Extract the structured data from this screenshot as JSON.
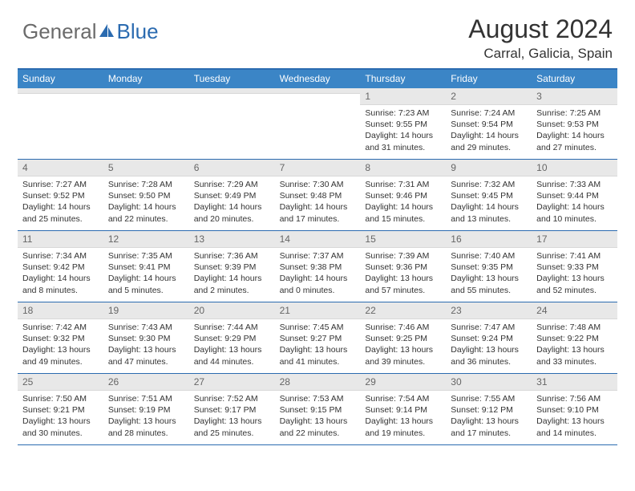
{
  "logo": {
    "text1": "General",
    "text2": "Blue"
  },
  "title": "August 2024",
  "location": "Carral, Galicia, Spain",
  "colors": {
    "header_bar": "#3b85c6",
    "accent_line": "#2b6bb0",
    "daynum_bg": "#e8e8e8",
    "logo_gray": "#6b6b6b",
    "logo_blue": "#2b6bb0"
  },
  "dow": [
    "Sunday",
    "Monday",
    "Tuesday",
    "Wednesday",
    "Thursday",
    "Friday",
    "Saturday"
  ],
  "weeks": [
    [
      {
        "n": "",
        "sr": "",
        "ss": "",
        "dl": ""
      },
      {
        "n": "",
        "sr": "",
        "ss": "",
        "dl": ""
      },
      {
        "n": "",
        "sr": "",
        "ss": "",
        "dl": ""
      },
      {
        "n": "",
        "sr": "",
        "ss": "",
        "dl": ""
      },
      {
        "n": "1",
        "sr": "Sunrise: 7:23 AM",
        "ss": "Sunset: 9:55 PM",
        "dl": "Daylight: 14 hours and 31 minutes."
      },
      {
        "n": "2",
        "sr": "Sunrise: 7:24 AM",
        "ss": "Sunset: 9:54 PM",
        "dl": "Daylight: 14 hours and 29 minutes."
      },
      {
        "n": "3",
        "sr": "Sunrise: 7:25 AM",
        "ss": "Sunset: 9:53 PM",
        "dl": "Daylight: 14 hours and 27 minutes."
      }
    ],
    [
      {
        "n": "4",
        "sr": "Sunrise: 7:27 AM",
        "ss": "Sunset: 9:52 PM",
        "dl": "Daylight: 14 hours and 25 minutes."
      },
      {
        "n": "5",
        "sr": "Sunrise: 7:28 AM",
        "ss": "Sunset: 9:50 PM",
        "dl": "Daylight: 14 hours and 22 minutes."
      },
      {
        "n": "6",
        "sr": "Sunrise: 7:29 AM",
        "ss": "Sunset: 9:49 PM",
        "dl": "Daylight: 14 hours and 20 minutes."
      },
      {
        "n": "7",
        "sr": "Sunrise: 7:30 AM",
        "ss": "Sunset: 9:48 PM",
        "dl": "Daylight: 14 hours and 17 minutes."
      },
      {
        "n": "8",
        "sr": "Sunrise: 7:31 AM",
        "ss": "Sunset: 9:46 PM",
        "dl": "Daylight: 14 hours and 15 minutes."
      },
      {
        "n": "9",
        "sr": "Sunrise: 7:32 AM",
        "ss": "Sunset: 9:45 PM",
        "dl": "Daylight: 14 hours and 13 minutes."
      },
      {
        "n": "10",
        "sr": "Sunrise: 7:33 AM",
        "ss": "Sunset: 9:44 PM",
        "dl": "Daylight: 14 hours and 10 minutes."
      }
    ],
    [
      {
        "n": "11",
        "sr": "Sunrise: 7:34 AM",
        "ss": "Sunset: 9:42 PM",
        "dl": "Daylight: 14 hours and 8 minutes."
      },
      {
        "n": "12",
        "sr": "Sunrise: 7:35 AM",
        "ss": "Sunset: 9:41 PM",
        "dl": "Daylight: 14 hours and 5 minutes."
      },
      {
        "n": "13",
        "sr": "Sunrise: 7:36 AM",
        "ss": "Sunset: 9:39 PM",
        "dl": "Daylight: 14 hours and 2 minutes."
      },
      {
        "n": "14",
        "sr": "Sunrise: 7:37 AM",
        "ss": "Sunset: 9:38 PM",
        "dl": "Daylight: 14 hours and 0 minutes."
      },
      {
        "n": "15",
        "sr": "Sunrise: 7:39 AM",
        "ss": "Sunset: 9:36 PM",
        "dl": "Daylight: 13 hours and 57 minutes."
      },
      {
        "n": "16",
        "sr": "Sunrise: 7:40 AM",
        "ss": "Sunset: 9:35 PM",
        "dl": "Daylight: 13 hours and 55 minutes."
      },
      {
        "n": "17",
        "sr": "Sunrise: 7:41 AM",
        "ss": "Sunset: 9:33 PM",
        "dl": "Daylight: 13 hours and 52 minutes."
      }
    ],
    [
      {
        "n": "18",
        "sr": "Sunrise: 7:42 AM",
        "ss": "Sunset: 9:32 PM",
        "dl": "Daylight: 13 hours and 49 minutes."
      },
      {
        "n": "19",
        "sr": "Sunrise: 7:43 AM",
        "ss": "Sunset: 9:30 PM",
        "dl": "Daylight: 13 hours and 47 minutes."
      },
      {
        "n": "20",
        "sr": "Sunrise: 7:44 AM",
        "ss": "Sunset: 9:29 PM",
        "dl": "Daylight: 13 hours and 44 minutes."
      },
      {
        "n": "21",
        "sr": "Sunrise: 7:45 AM",
        "ss": "Sunset: 9:27 PM",
        "dl": "Daylight: 13 hours and 41 minutes."
      },
      {
        "n": "22",
        "sr": "Sunrise: 7:46 AM",
        "ss": "Sunset: 9:25 PM",
        "dl": "Daylight: 13 hours and 39 minutes."
      },
      {
        "n": "23",
        "sr": "Sunrise: 7:47 AM",
        "ss": "Sunset: 9:24 PM",
        "dl": "Daylight: 13 hours and 36 minutes."
      },
      {
        "n": "24",
        "sr": "Sunrise: 7:48 AM",
        "ss": "Sunset: 9:22 PM",
        "dl": "Daylight: 13 hours and 33 minutes."
      }
    ],
    [
      {
        "n": "25",
        "sr": "Sunrise: 7:50 AM",
        "ss": "Sunset: 9:21 PM",
        "dl": "Daylight: 13 hours and 30 minutes."
      },
      {
        "n": "26",
        "sr": "Sunrise: 7:51 AM",
        "ss": "Sunset: 9:19 PM",
        "dl": "Daylight: 13 hours and 28 minutes."
      },
      {
        "n": "27",
        "sr": "Sunrise: 7:52 AM",
        "ss": "Sunset: 9:17 PM",
        "dl": "Daylight: 13 hours and 25 minutes."
      },
      {
        "n": "28",
        "sr": "Sunrise: 7:53 AM",
        "ss": "Sunset: 9:15 PM",
        "dl": "Daylight: 13 hours and 22 minutes."
      },
      {
        "n": "29",
        "sr": "Sunrise: 7:54 AM",
        "ss": "Sunset: 9:14 PM",
        "dl": "Daylight: 13 hours and 19 minutes."
      },
      {
        "n": "30",
        "sr": "Sunrise: 7:55 AM",
        "ss": "Sunset: 9:12 PM",
        "dl": "Daylight: 13 hours and 17 minutes."
      },
      {
        "n": "31",
        "sr": "Sunrise: 7:56 AM",
        "ss": "Sunset: 9:10 PM",
        "dl": "Daylight: 13 hours and 14 minutes."
      }
    ]
  ]
}
